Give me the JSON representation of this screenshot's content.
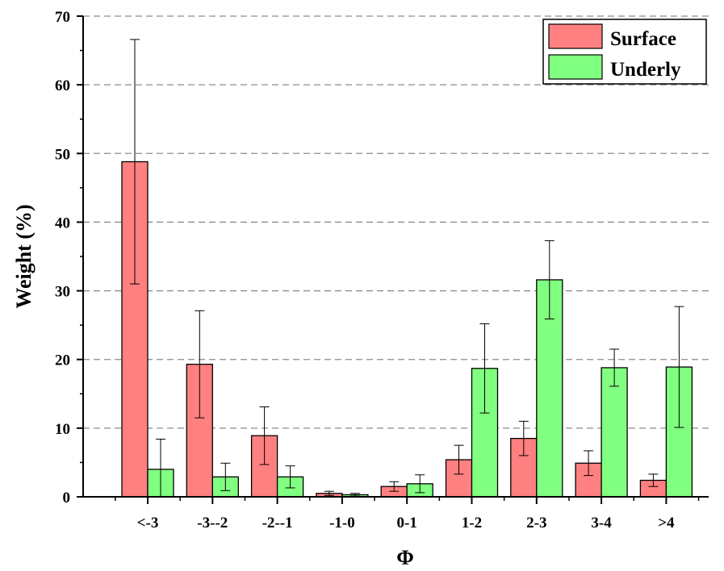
{
  "chart_data": {
    "type": "bar",
    "title": "",
    "xlabel": "Φ",
    "ylabel": "Weight (%)",
    "ylim": [
      0,
      70
    ],
    "yticks": [
      0,
      10,
      20,
      30,
      40,
      50,
      60,
      70
    ],
    "grid": "horizontal dashed",
    "legend_position": "top-right",
    "categories": [
      "<-3",
      "-3--2",
      "-2--1",
      "-1-0",
      "0-1",
      "1-2",
      "2-3",
      "3-4",
      ">4"
    ],
    "series": [
      {
        "name": "Surface",
        "color": "#FF8080",
        "values": [
          48.8,
          19.3,
          8.9,
          0.5,
          1.5,
          5.4,
          8.5,
          4.9,
          2.4
        ],
        "error": [
          17.8,
          7.8,
          4.2,
          0.3,
          0.7,
          2.1,
          2.5,
          1.8,
          0.9
        ]
      },
      {
        "name": "Underly",
        "color": "#80FF80",
        "values": [
          4.0,
          2.9,
          2.9,
          0.3,
          1.9,
          18.7,
          31.6,
          18.8,
          18.9
        ],
        "error": [
          4.4,
          2.0,
          1.6,
          0.2,
          1.3,
          6.5,
          5.7,
          2.7,
          8.8
        ]
      }
    ]
  }
}
